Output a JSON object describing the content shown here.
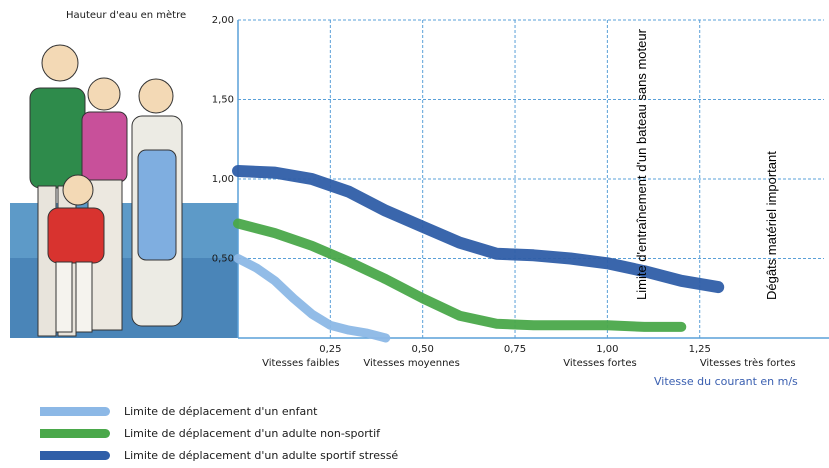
{
  "chart_data": {
    "type": "line",
    "ylabel": "Hauteur d'eau en mètre",
    "xlabel": "Vitesse du courant en m/s",
    "xlim": [
      0,
      1.6
    ],
    "ylim": [
      0,
      2.0
    ],
    "x_ticks": [
      "0,25",
      "0,50",
      "0,75",
      "1,00",
      "1,25"
    ],
    "y_ticks": [
      "0,50",
      "1,00",
      "1,50",
      "2,00"
    ],
    "x_categories": [
      "Vitesses faibles",
      "Vitesses moyennes",
      "Vitesses fortes",
      "Vitesses très fortes"
    ],
    "annotations": [
      "Limite d'entraînement d'un bateau sans moteur",
      "Dégâts matériel important"
    ],
    "series": [
      {
        "name": "Limite de déplacement d'un enfant",
        "color": "#8cb8e6",
        "x": [
          0.0,
          0.05,
          0.1,
          0.15,
          0.2,
          0.25,
          0.3,
          0.35,
          0.4
        ],
        "y": [
          0.5,
          0.44,
          0.36,
          0.25,
          0.15,
          0.08,
          0.05,
          0.03,
          0.0
        ]
      },
      {
        "name": "Limite de déplacement d'un adulte non-sportif",
        "color": "#4aa84a",
        "x": [
          0.0,
          0.1,
          0.2,
          0.3,
          0.4,
          0.5,
          0.6,
          0.7,
          0.8,
          0.9,
          1.0,
          1.1,
          1.2
        ],
        "y": [
          0.72,
          0.66,
          0.58,
          0.48,
          0.37,
          0.25,
          0.14,
          0.09,
          0.08,
          0.08,
          0.08,
          0.07,
          0.07
        ]
      },
      {
        "name": "Limite de déplacement d'un adulte sportif stressé",
        "color": "#2f5ea8",
        "x": [
          0.0,
          0.1,
          0.2,
          0.3,
          0.4,
          0.5,
          0.6,
          0.7,
          0.8,
          0.9,
          1.0,
          1.1,
          1.2,
          1.3
        ],
        "y": [
          1.05,
          1.04,
          1.0,
          0.92,
          0.8,
          0.7,
          0.6,
          0.53,
          0.52,
          0.5,
          0.47,
          0.42,
          0.36,
          0.32
        ]
      }
    ]
  }
}
